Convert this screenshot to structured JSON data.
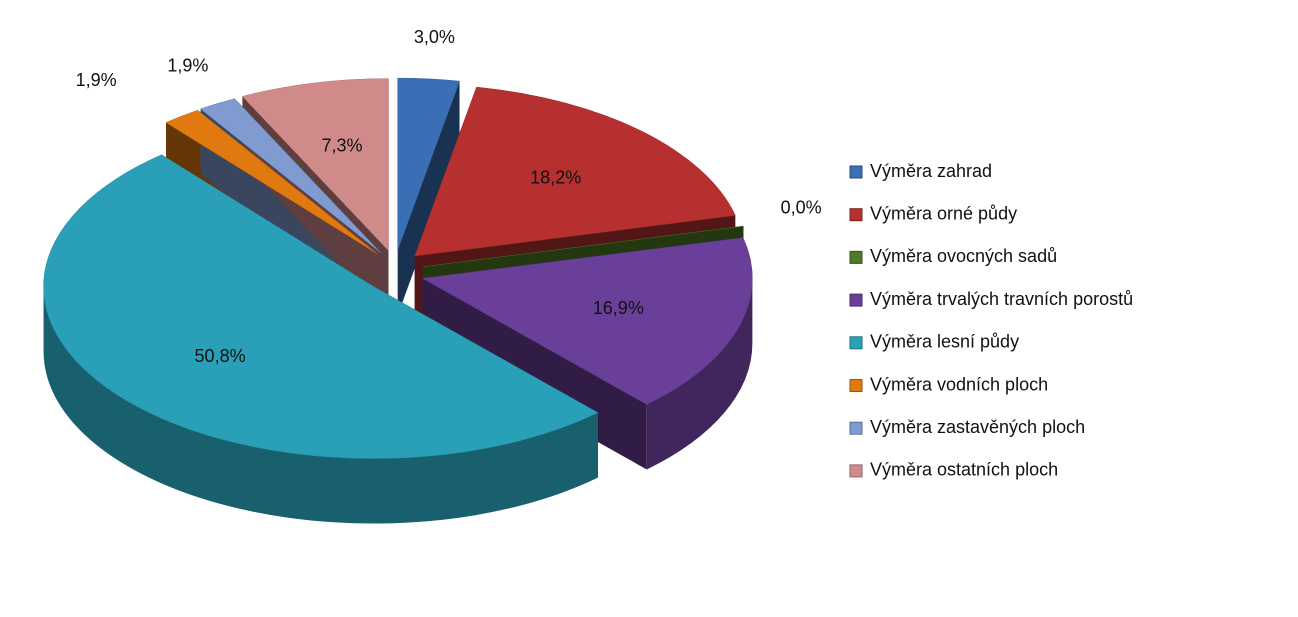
{
  "chart_data": {
    "type": "pie",
    "categories": [
      "Výměra zahrad",
      "Výměra orné půdy",
      "Výměra ovocných sadů",
      "Výměra trvalých travních porostů",
      "Výměra lesní půdy",
      "Výměra vodních ploch",
      "Výměra zastavěných ploch",
      "Výměra ostatních ploch"
    ],
    "values": [
      3.0,
      18.2,
      0.0,
      16.9,
      50.8,
      1.9,
      1.9,
      7.3
    ],
    "value_labels": [
      "3,0%",
      "18,2%",
      "0,0%",
      "16,9%",
      "50,8%",
      "1,9%",
      "1,9%",
      "7,3%"
    ],
    "colors": [
      "#3a6fb5",
      "#b5302f",
      "#4e7a25",
      "#6a3f9a",
      "#2aa0b8",
      "#e07a10",
      "#7f9bcf",
      "#d08a8a"
    ],
    "legend": "right"
  }
}
